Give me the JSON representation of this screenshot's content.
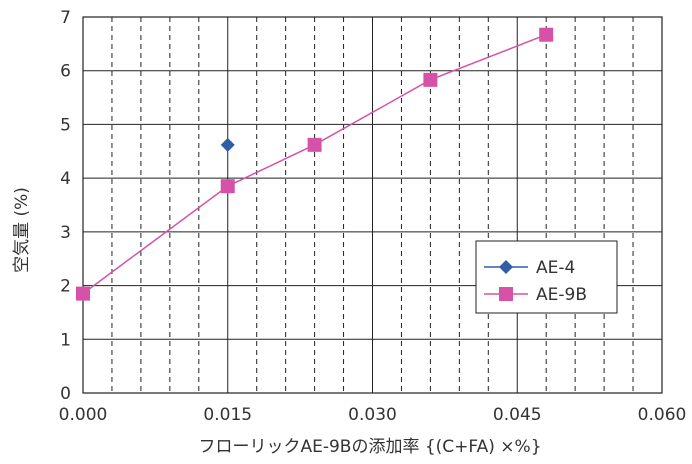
{
  "chart_data": {
    "type": "line",
    "xlabel": "フローリックAE-9Bの添加率 {(C+FA) ×%}",
    "ylabel": "空気量 (%)",
    "xlim": [
      0.0,
      0.06
    ],
    "ylim": [
      0,
      7
    ],
    "x_ticks": [
      "0.000",
      "0.015",
      "0.030",
      "0.045",
      "0.060"
    ],
    "y_ticks": [
      "0",
      "1",
      "2",
      "3",
      "4",
      "5",
      "6",
      "7"
    ],
    "x_minor_step": 0.003,
    "grid": true,
    "legend_position": "right",
    "series": [
      {
        "name": "AE-4",
        "marker": "diamond",
        "color": "#2E5FA8",
        "points": [
          [
            0.015,
            4.62
          ]
        ]
      },
      {
        "name": "AE-9B",
        "marker": "square",
        "color": "#D552A8",
        "points": [
          [
            0.0,
            1.85
          ],
          [
            0.015,
            3.85
          ],
          [
            0.024,
            4.62
          ],
          [
            0.036,
            5.83
          ],
          [
            0.048,
            6.67
          ]
        ]
      }
    ]
  }
}
